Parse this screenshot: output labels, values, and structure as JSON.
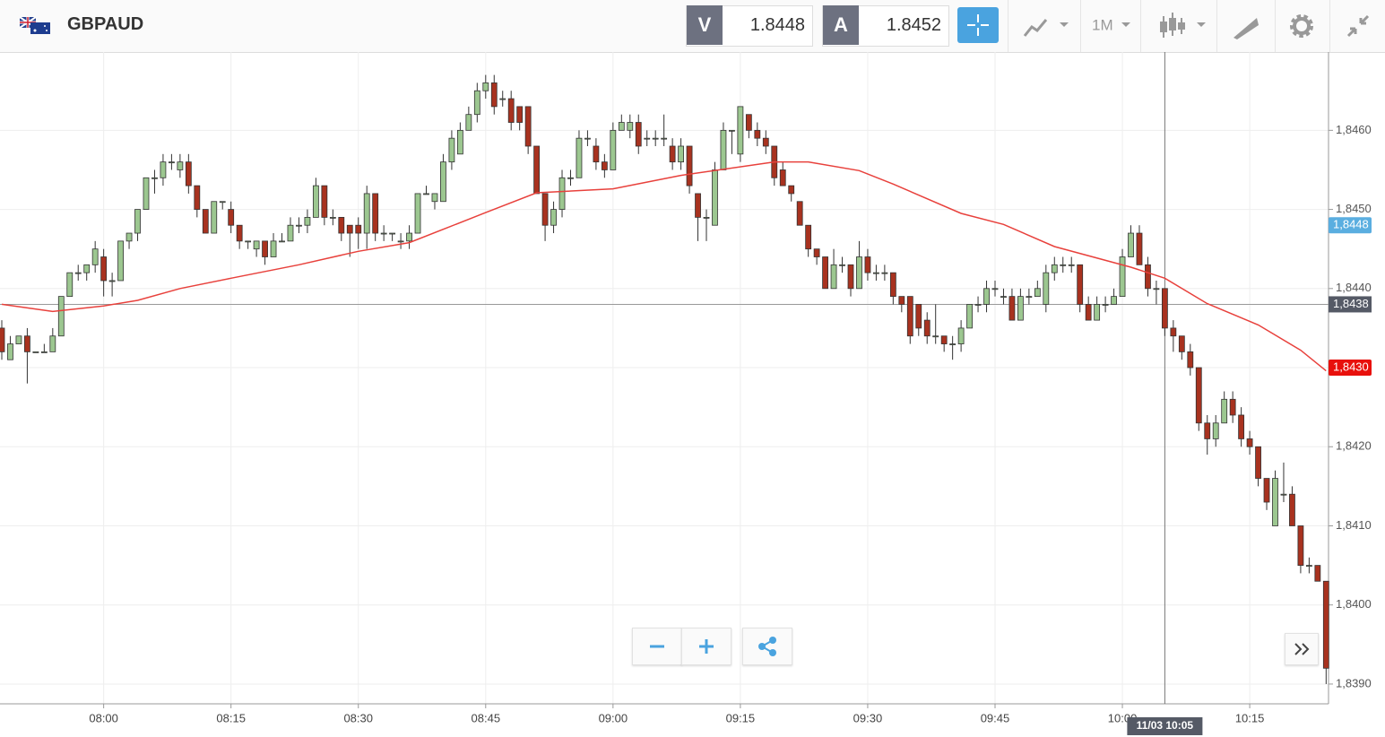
{
  "header": {
    "symbol": "GBPAUD",
    "bid_letter": "V",
    "bid": "1.8448",
    "ask_letter": "A",
    "ask": "1.8452",
    "timeframe": "1M"
  },
  "chart_data": {
    "type": "candlestick",
    "up_color": "#9cc790",
    "down_color": "#a8321f",
    "grid": true,
    "x": [
      "07:48",
      "07:49",
      "07:50",
      "07:51",
      "07:52",
      "07:53",
      "07:54",
      "07:55",
      "07:56",
      "07:57",
      "07:58",
      "07:59",
      "08:00",
      "08:01",
      "08:02",
      "08:03",
      "08:04",
      "08:05",
      "08:06",
      "08:07",
      "08:08",
      "08:09",
      "08:10",
      "08:11",
      "08:12",
      "08:13",
      "08:14",
      "08:15",
      "08:16",
      "08:17",
      "08:18",
      "08:19",
      "08:20",
      "08:21",
      "08:22",
      "08:23",
      "08:24",
      "08:25",
      "08:26",
      "08:27",
      "08:28",
      "08:29",
      "08:30",
      "08:31",
      "08:32",
      "08:33",
      "08:34",
      "08:35",
      "08:36",
      "08:37",
      "08:38",
      "08:39",
      "08:40",
      "08:41",
      "08:42",
      "08:43",
      "08:44",
      "08:45",
      "08:46",
      "08:47",
      "08:48",
      "08:49",
      "08:50",
      "08:51",
      "08:52",
      "08:53",
      "08:54",
      "08:55",
      "08:56",
      "08:57",
      "08:58",
      "08:59",
      "09:00",
      "09:01",
      "09:02",
      "09:03",
      "09:04",
      "09:05",
      "09:06",
      "09:07",
      "09:08",
      "09:09",
      "09:10",
      "09:11",
      "09:12",
      "09:13",
      "09:14",
      "09:15",
      "09:16",
      "09:17",
      "09:18",
      "09:19",
      "09:20",
      "09:21",
      "09:22",
      "09:23",
      "09:24",
      "09:25",
      "09:26",
      "09:27",
      "09:28",
      "09:29",
      "09:30",
      "09:31",
      "09:32",
      "09:33",
      "09:34",
      "09:35",
      "09:36",
      "09:37",
      "09:38",
      "09:39",
      "09:40",
      "09:41",
      "09:42",
      "09:43",
      "09:44",
      "09:45",
      "09:46",
      "09:47",
      "09:48",
      "09:49",
      "09:50",
      "09:51",
      "09:52",
      "09:53",
      "09:54",
      "09:55",
      "09:56",
      "09:57",
      "09:58",
      "09:59",
      "10:00",
      "10:01",
      "10:02",
      "10:03",
      "10:04",
      "10:05",
      "10:06",
      "10:07",
      "10:08",
      "10:09",
      "10:10",
      "10:11",
      "10:12",
      "10:13",
      "10:14",
      "10:15",
      "10:16",
      "10:17",
      "10:18",
      "10:19",
      "10:20",
      "10:21",
      "10:22",
      "10:23",
      "10:24"
    ],
    "ohlc": [
      [
        1.8435,
        1.8436,
        1.8431,
        1.8432
      ],
      [
        1.8431,
        1.8434,
        1.8431,
        1.8433
      ],
      [
        1.8433,
        1.8434,
        1.8433,
        1.8434
      ],
      [
        1.8434,
        1.8435,
        1.8428,
        1.8432
      ],
      [
        1.8432,
        1.8432,
        1.8432,
        1.8432
      ],
      [
        1.8432,
        1.8433,
        1.8432,
        1.8432
      ],
      [
        1.8432,
        1.8435,
        1.8432,
        1.8434
      ],
      [
        1.8434,
        1.8439,
        1.8434,
        1.8439
      ],
      [
        1.8439,
        1.8442,
        1.8439,
        1.8442
      ],
      [
        1.8442,
        1.8443,
        1.8441,
        1.8442
      ],
      [
        1.8442,
        1.8443,
        1.8441,
        1.8443
      ],
      [
        1.8443,
        1.8446,
        1.8442,
        1.8445
      ],
      [
        1.8444,
        1.8445,
        1.8439,
        1.8441
      ],
      [
        1.8441,
        1.8442,
        1.8439,
        1.8441
      ],
      [
        1.8441,
        1.8446,
        1.8441,
        1.8446
      ],
      [
        1.8446,
        1.8447,
        1.8445,
        1.8447
      ],
      [
        1.8447,
        1.845,
        1.8446,
        1.845
      ],
      [
        1.845,
        1.8454,
        1.845,
        1.8454
      ],
      [
        1.8454,
        1.8455,
        1.8452,
        1.8454
      ],
      [
        1.8454,
        1.8457,
        1.8453,
        1.8456
      ],
      [
        1.8456,
        1.8457,
        1.8455,
        1.8456
      ],
      [
        1.8455,
        1.8457,
        1.8454,
        1.8456
      ],
      [
        1.8456,
        1.8457,
        1.8452,
        1.8453
      ],
      [
        1.8453,
        1.8453,
        1.8449,
        1.845
      ],
      [
        1.845,
        1.845,
        1.8447,
        1.8447
      ],
      [
        1.8447,
        1.8451,
        1.8447,
        1.8451
      ],
      [
        1.8451,
        1.8451,
        1.845,
        1.8451
      ],
      [
        1.845,
        1.8451,
        1.8447,
        1.8448
      ],
      [
        1.8448,
        1.8448,
        1.8445,
        1.8446
      ],
      [
        1.8446,
        1.8446,
        1.8445,
        1.8446
      ],
      [
        1.8445,
        1.8446,
        1.8444,
        1.8446
      ],
      [
        1.8446,
        1.8446,
        1.8443,
        1.8444
      ],
      [
        1.8444,
        1.8447,
        1.8444,
        1.8446
      ],
      [
        1.8446,
        1.8447,
        1.8446,
        1.8446
      ],
      [
        1.8446,
        1.8449,
        1.8446,
        1.8448
      ],
      [
        1.8448,
        1.8449,
        1.8447,
        1.8448
      ],
      [
        1.8448,
        1.845,
        1.8447,
        1.8449
      ],
      [
        1.8449,
        1.8454,
        1.8449,
        1.8453
      ],
      [
        1.8453,
        1.8453,
        1.8448,
        1.8449
      ],
      [
        1.8449,
        1.845,
        1.8448,
        1.8449
      ],
      [
        1.8449,
        1.8449,
        1.8446,
        1.8447
      ],
      [
        1.8448,
        1.8448,
        1.8444,
        1.8447
      ],
      [
        1.8448,
        1.8449,
        1.8445,
        1.8447
      ],
      [
        1.8447,
        1.8453,
        1.8445,
        1.8452
      ],
      [
        1.8452,
        1.8452,
        1.8446,
        1.8447
      ],
      [
        1.8447,
        1.8448,
        1.8446,
        1.8447
      ],
      [
        1.8447,
        1.8447,
        1.8446,
        1.8447
      ],
      [
        1.8446,
        1.8447,
        1.8445,
        1.8446
      ],
      [
        1.8446,
        1.8448,
        1.8445,
        1.8447
      ],
      [
        1.8447,
        1.8452,
        1.8447,
        1.8452
      ],
      [
        1.8452,
        1.8453,
        1.8452,
        1.8452
      ],
      [
        1.8451,
        1.8452,
        1.845,
        1.8452
      ],
      [
        1.8451,
        1.8457,
        1.8451,
        1.8456
      ],
      [
        1.8456,
        1.846,
        1.8455,
        1.8459
      ],
      [
        1.8457,
        1.8461,
        1.8457,
        1.846
      ],
      [
        1.846,
        1.8463,
        1.846,
        1.8462
      ],
      [
        1.8462,
        1.8466,
        1.8461,
        1.8465
      ],
      [
        1.8465,
        1.8467,
        1.8464,
        1.8466
      ],
      [
        1.8466,
        1.8467,
        1.8462,
        1.8463
      ],
      [
        1.8464,
        1.8465,
        1.8463,
        1.8464
      ],
      [
        1.8464,
        1.8465,
        1.846,
        1.8461
      ],
      [
        1.8463,
        1.8463,
        1.846,
        1.8461
      ],
      [
        1.8463,
        1.8463,
        1.8457,
        1.8458
      ],
      [
        1.8458,
        1.8458,
        1.8452,
        1.8452
      ],
      [
        1.8452,
        1.8452,
        1.8446,
        1.8448
      ],
      [
        1.8448,
        1.8451,
        1.8447,
        1.845
      ],
      [
        1.845,
        1.8455,
        1.8449,
        1.8454
      ],
      [
        1.8454,
        1.8455,
        1.8453,
        1.8454
      ],
      [
        1.8454,
        1.846,
        1.8454,
        1.8459
      ],
      [
        1.8459,
        1.846,
        1.8458,
        1.8459
      ],
      [
        1.8458,
        1.8459,
        1.8455,
        1.8456
      ],
      [
        1.8456,
        1.8457,
        1.8454,
        1.8455
      ],
      [
        1.8455,
        1.8461,
        1.8455,
        1.846
      ],
      [
        1.846,
        1.8462,
        1.846,
        1.8461
      ],
      [
        1.846,
        1.8462,
        1.8459,
        1.8461
      ],
      [
        1.8461,
        1.8462,
        1.8457,
        1.8458
      ],
      [
        1.8459,
        1.846,
        1.8458,
        1.8459
      ],
      [
        1.8459,
        1.846,
        1.8458,
        1.8459
      ],
      [
        1.8459,
        1.8462,
        1.8458,
        1.8459
      ],
      [
        1.8458,
        1.8459,
        1.8455,
        1.8456
      ],
      [
        1.8456,
        1.8459,
        1.8455,
        1.8458
      ],
      [
        1.8458,
        1.8458,
        1.8452,
        1.8453
      ],
      [
        1.8452,
        1.8452,
        1.8446,
        1.8449
      ],
      [
        1.8449,
        1.845,
        1.8446,
        1.8449
      ],
      [
        1.8448,
        1.8456,
        1.8448,
        1.8455
      ],
      [
        1.8455,
        1.8461,
        1.8455,
        1.846
      ],
      [
        1.846,
        1.846,
        1.8457,
        1.846
      ],
      [
        1.8457,
        1.8463,
        1.8456,
        1.8463
      ],
      [
        1.8462,
        1.8462,
        1.8459,
        1.846
      ],
      [
        1.846,
        1.8461,
        1.8458,
        1.8459
      ],
      [
        1.8459,
        1.846,
        1.8457,
        1.8458
      ],
      [
        1.8458,
        1.8458,
        1.8453,
        1.8454
      ],
      [
        1.8455,
        1.8456,
        1.8453,
        1.8453
      ],
      [
        1.8453,
        1.8453,
        1.8451,
        1.8452
      ],
      [
        1.8451,
        1.8451,
        1.8448,
        1.8448
      ],
      [
        1.8448,
        1.8448,
        1.8444,
        1.8445
      ],
      [
        1.8445,
        1.8445,
        1.8443,
        1.8444
      ],
      [
        1.8444,
        1.8444,
        1.844,
        1.844
      ],
      [
        1.844,
        1.8445,
        1.844,
        1.8443
      ],
      [
        1.8443,
        1.8444,
        1.8442,
        1.8443
      ],
      [
        1.8443,
        1.8443,
        1.8439,
        1.844
      ],
      [
        1.844,
        1.8446,
        1.844,
        1.8444
      ],
      [
        1.8444,
        1.8445,
        1.8441,
        1.8442
      ],
      [
        1.8442,
        1.8443,
        1.8441,
        1.8442
      ],
      [
        1.8442,
        1.8443,
        1.8441,
        1.8442
      ],
      [
        1.8442,
        1.8442,
        1.8438,
        1.8439
      ],
      [
        1.8439,
        1.8439,
        1.8437,
        1.8438
      ],
      [
        1.8439,
        1.8439,
        1.8433,
        1.8434
      ],
      [
        1.8438,
        1.8438,
        1.8434,
        1.8435
      ],
      [
        1.8436,
        1.8437,
        1.8433,
        1.8434
      ],
      [
        1.8434,
        1.8438,
        1.8433,
        1.8434
      ],
      [
        1.8434,
        1.8434,
        1.8432,
        1.8433
      ],
      [
        1.8433,
        1.8434,
        1.8431,
        1.8433
      ],
      [
        1.8433,
        1.8436,
        1.8432,
        1.8435
      ],
      [
        1.8435,
        1.8438,
        1.8435,
        1.8438
      ],
      [
        1.8438,
        1.8439,
        1.8437,
        1.8438
      ],
      [
        1.8438,
        1.8441,
        1.8437,
        1.844
      ],
      [
        1.844,
        1.8441,
        1.8439,
        1.844
      ],
      [
        1.8439,
        1.844,
        1.8438,
        1.8439
      ],
      [
        1.8439,
        1.844,
        1.8436,
        1.8436
      ],
      [
        1.8436,
        1.844,
        1.8436,
        1.8439
      ],
      [
        1.8439,
        1.844,
        1.8438,
        1.8439
      ],
      [
        1.8439,
        1.8441,
        1.8439,
        1.844
      ],
      [
        1.8438,
        1.8443,
        1.8437,
        1.8442
      ],
      [
        1.8442,
        1.8444,
        1.8441,
        1.8443
      ],
      [
        1.8443,
        1.8444,
        1.8442,
        1.8443
      ],
      [
        1.8443,
        1.8444,
        1.8442,
        1.8443
      ],
      [
        1.8443,
        1.8443,
        1.8437,
        1.8438
      ],
      [
        1.8438,
        1.8439,
        1.8436,
        1.8436
      ],
      [
        1.8436,
        1.8439,
        1.8436,
        1.8438
      ],
      [
        1.8438,
        1.8439,
        1.8437,
        1.8438
      ],
      [
        1.8438,
        1.844,
        1.8438,
        1.8439
      ],
      [
        1.8439,
        1.8445,
        1.8439,
        1.8444
      ],
      [
        1.8444,
        1.8448,
        1.8444,
        1.8447
      ],
      [
        1.8447,
        1.8448,
        1.8443,
        1.8443
      ],
      [
        1.8443,
        1.8444,
        1.8439,
        1.844
      ],
      [
        1.844,
        1.8441,
        1.8438,
        1.844
      ],
      [
        1.844,
        1.844,
        1.8434,
        1.8435
      ],
      [
        1.8435,
        1.8436,
        1.8432,
        1.8434
      ],
      [
        1.8434,
        1.8434,
        1.8431,
        1.8432
      ],
      [
        1.8432,
        1.8433,
        1.8429,
        1.843
      ],
      [
        1.843,
        1.843,
        1.8422,
        1.8423
      ],
      [
        1.8423,
        1.8424,
        1.8419,
        1.8421
      ],
      [
        1.8421,
        1.8424,
        1.842,
        1.8423
      ],
      [
        1.8423,
        1.8427,
        1.8423,
        1.8426
      ],
      [
        1.8426,
        1.8427,
        1.8423,
        1.8424
      ],
      [
        1.8424,
        1.8425,
        1.842,
        1.8421
      ],
      [
        1.8421,
        1.8422,
        1.8419,
        1.842
      ],
      [
        1.842,
        1.842,
        1.8415,
        1.8416
      ],
      [
        1.8416,
        1.8416,
        1.8412,
        1.8413
      ],
      [
        1.841,
        1.8417,
        1.841,
        1.8416
      ],
      [
        1.8414,
        1.8418,
        1.8413,
        1.8414
      ],
      [
        1.8414,
        1.8415,
        1.841,
        1.841
      ],
      [
        1.841,
        1.841,
        1.8404,
        1.8405
      ],
      [
        1.8405,
        1.8406,
        1.8404,
        1.8405
      ],
      [
        1.8405,
        1.8405,
        1.8403,
        1.8403
      ],
      [
        1.8403,
        1.8403,
        1.839,
        1.8392
      ]
    ],
    "line": {
      "color": "#e8413c",
      "x": [
        "07:48",
        "07:54",
        "08:00",
        "08:04",
        "08:09",
        "08:15",
        "08:23",
        "08:30",
        "08:36",
        "08:45",
        "08:51",
        "09:00",
        "09:08",
        "09:19",
        "09:23",
        "09:29",
        "09:33",
        "09:41",
        "09:46",
        "09:52",
        "10:01",
        "10:05",
        "10:10",
        "10:16",
        "10:21",
        "10:24"
      ],
      "values": [
        1.8438,
        1.84371,
        1.84378,
        1.84385,
        1.844,
        1.84413,
        1.8443,
        1.84447,
        1.84458,
        1.84496,
        1.84521,
        1.84526,
        1.84543,
        1.8456,
        1.8456,
        1.84549,
        1.84532,
        1.84495,
        1.84481,
        1.84453,
        1.84427,
        1.84413,
        1.84381,
        1.84354,
        1.84322,
        1.84296
      ]
    },
    "ylim": [
      1.83875,
      1.84699
    ],
    "yticks": [
      {
        "value": 1.846,
        "label": "1,8460"
      },
      {
        "value": 1.845,
        "label": "1,8450"
      },
      {
        "value": 1.844,
        "label": "1,8440"
      },
      {
        "value": 1.843,
        "label": "1,8430"
      },
      {
        "value": 1.842,
        "label": "1,8420"
      },
      {
        "value": 1.841,
        "label": "1,8410"
      },
      {
        "value": 1.84,
        "label": "1,8400"
      },
      {
        "value": 1.839,
        "label": "1,8390"
      }
    ],
    "xticks": [
      "08:00",
      "08:15",
      "08:30",
      "08:45",
      "09:00",
      "09:15",
      "09:30",
      "09:45",
      "10:00",
      "10:15"
    ],
    "price_labels": [
      {
        "value": 1.8448,
        "label": "1,8448",
        "color": "#5aaee0"
      },
      {
        "value": 1.843,
        "label": "1,8430",
        "color": "#e8100c"
      }
    ],
    "crosshair": {
      "x": "10:05",
      "x_label": "11/03 10:05",
      "y": 1.8438,
      "y_label": "1,8438",
      "color": "#555a66"
    }
  }
}
